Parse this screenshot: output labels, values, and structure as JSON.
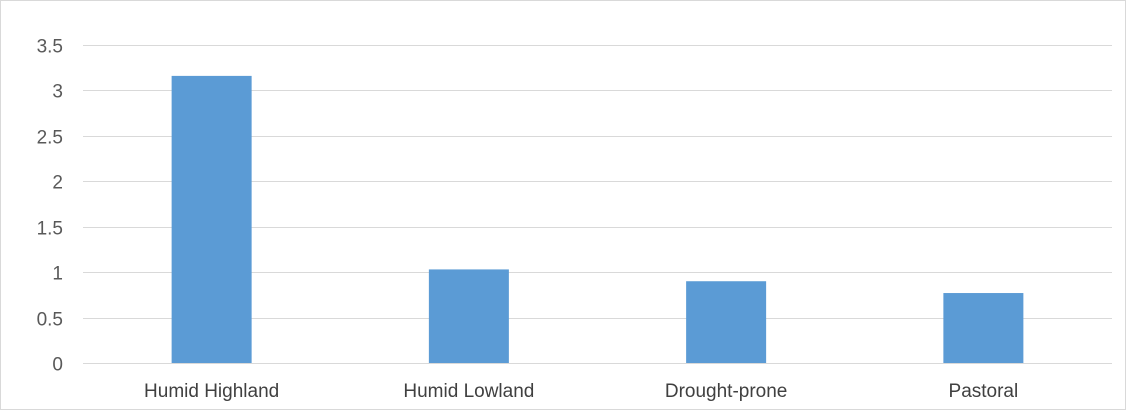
{
  "chart_data": {
    "type": "bar",
    "title": "",
    "xlabel": "",
    "ylabel": "",
    "categories": [
      "Humid Highland",
      "Humid Lowland",
      "Drought-prone",
      "Pastoral"
    ],
    "values": [
      3.16,
      1.03,
      0.9,
      0.77
    ],
    "ylim": [
      0,
      3.5
    ],
    "yticks": [
      "0",
      "0.5",
      "1",
      "1.5",
      "2",
      "2.5",
      "3",
      "3.5"
    ],
    "grid": true,
    "legend": "none",
    "bar_color": "#5b9bd5",
    "grid_color": "#d9d9d9"
  }
}
